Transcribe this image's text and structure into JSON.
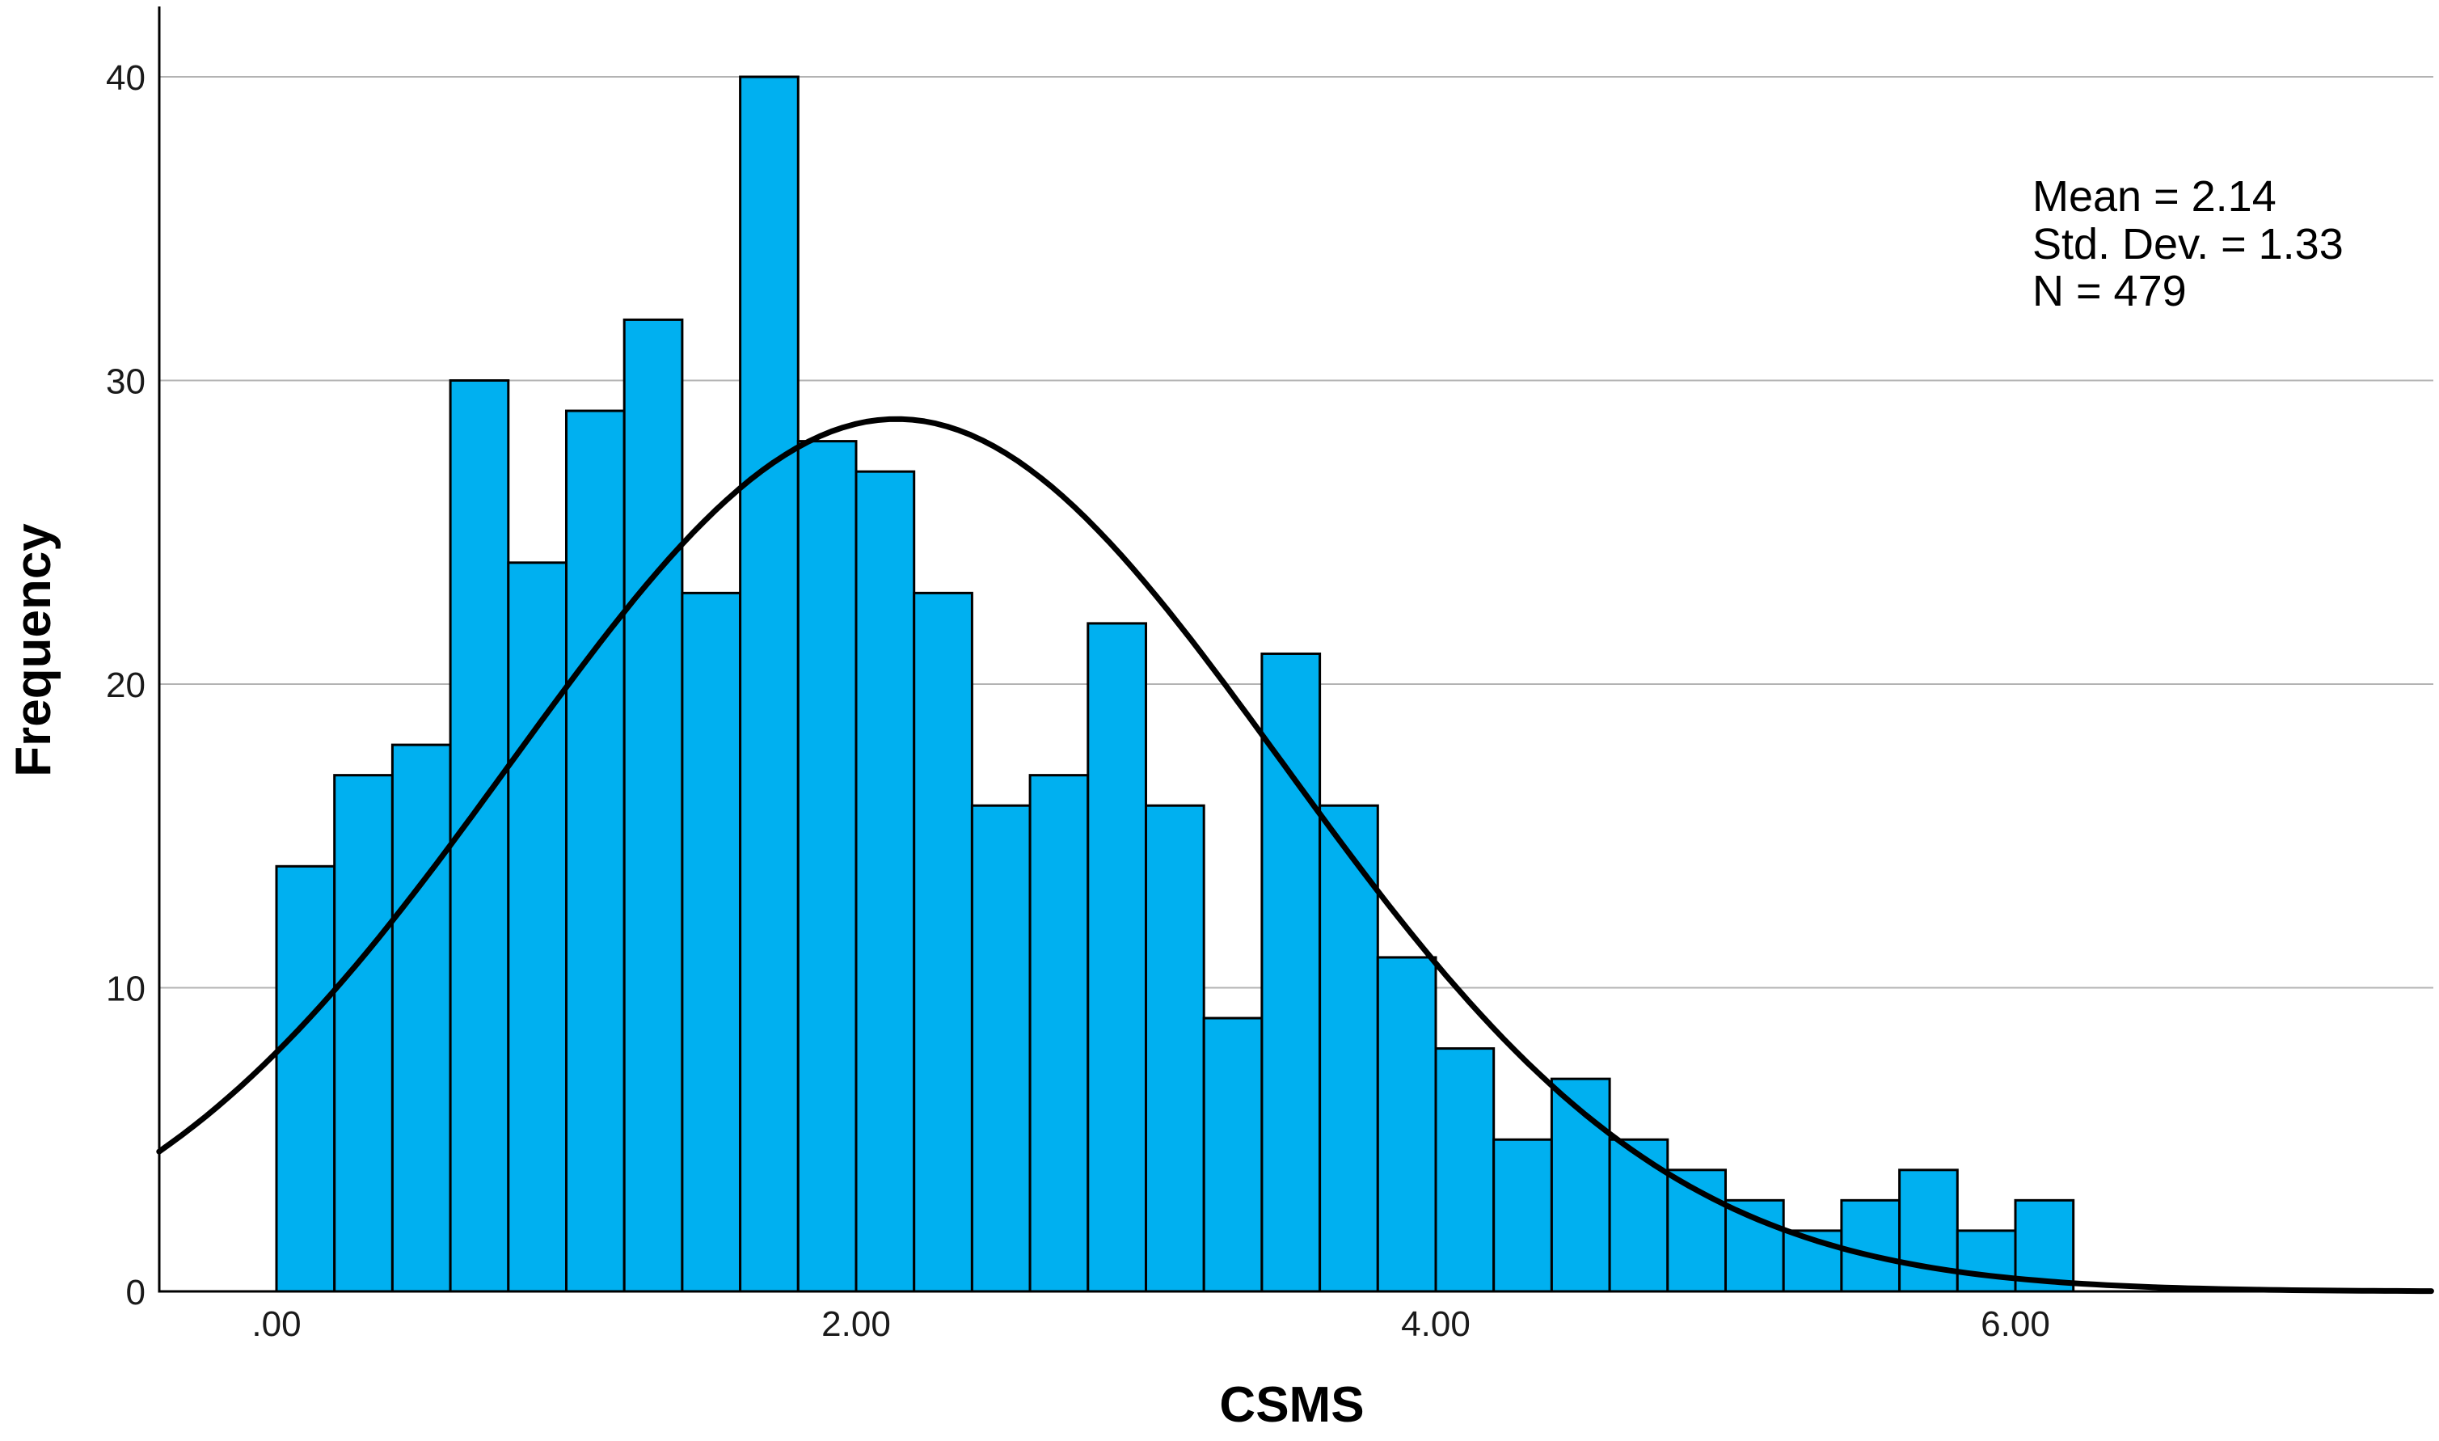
{
  "chart_data": {
    "type": "bar",
    "subtype": "histogram-with-normal-curve",
    "title": "",
    "xlabel": "CSMS",
    "ylabel": "Frequency",
    "x_tick_labels": [
      ".00",
      "2.00",
      "4.00",
      "6.00"
    ],
    "x_tick_values": [
      0,
      2,
      4,
      6
    ],
    "y_tick_values": [
      0,
      10,
      20,
      30,
      40
    ],
    "xlim": [
      -0.405,
      7.453
    ],
    "ylim": [
      0,
      42.2
    ],
    "bin_start": 0.0,
    "bin_width": 0.2,
    "bar_values": [
      14,
      17,
      18,
      30,
      24,
      29,
      32,
      23,
      40,
      28,
      27,
      23,
      16,
      17,
      22,
      16,
      9,
      21,
      16,
      11,
      8,
      5,
      7,
      5,
      4,
      3,
      2,
      3,
      4,
      2,
      3
    ],
    "normal_curve": {
      "mean": 2.14,
      "sd": 1.33,
      "peak": 28.73
    },
    "grid": "horizontal",
    "legend_position": "none",
    "stats_annotation": {
      "lines": [
        "Mean = 2.14",
        "Std. Dev. = 1.33",
        "N = 479"
      ]
    },
    "colors": {
      "bar_fill": "#00B0F0",
      "bar_stroke": "#000000",
      "curve": "#000000",
      "gridline": "#b3b3b3",
      "axis": "#000000",
      "text": "#1a1a1a"
    }
  }
}
